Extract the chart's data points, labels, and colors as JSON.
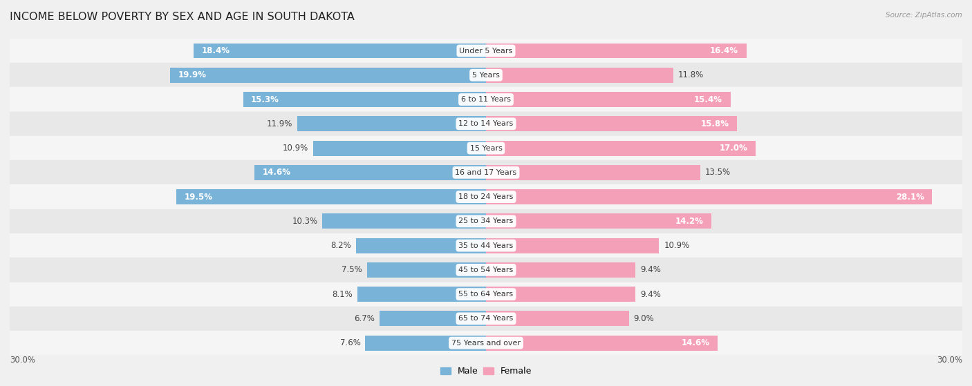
{
  "title": "INCOME BELOW POVERTY BY SEX AND AGE IN SOUTH DAKOTA",
  "source": "Source: ZipAtlas.com",
  "categories": [
    "Under 5 Years",
    "5 Years",
    "6 to 11 Years",
    "12 to 14 Years",
    "15 Years",
    "16 and 17 Years",
    "18 to 24 Years",
    "25 to 34 Years",
    "35 to 44 Years",
    "45 to 54 Years",
    "55 to 64 Years",
    "65 to 74 Years",
    "75 Years and over"
  ],
  "male_values": [
    18.4,
    19.9,
    15.3,
    11.9,
    10.9,
    14.6,
    19.5,
    10.3,
    8.2,
    7.5,
    8.1,
    6.7,
    7.6
  ],
  "female_values": [
    16.4,
    11.8,
    15.4,
    15.8,
    17.0,
    13.5,
    28.1,
    14.2,
    10.9,
    9.4,
    9.4,
    9.0,
    14.6
  ],
  "male_color": "#7ab3d8",
  "female_color": "#f4a0b8",
  "axis_max": 30.0,
  "background_color": "#f0f0f0",
  "row_bg_colors": [
    "#f5f5f5",
    "#e8e8e8"
  ],
  "bar_height": 0.62,
  "title_fontsize": 11.5,
  "label_fontsize": 8.5,
  "tick_fontsize": 8.5,
  "category_fontsize": 8.0,
  "source_fontsize": 7.5
}
